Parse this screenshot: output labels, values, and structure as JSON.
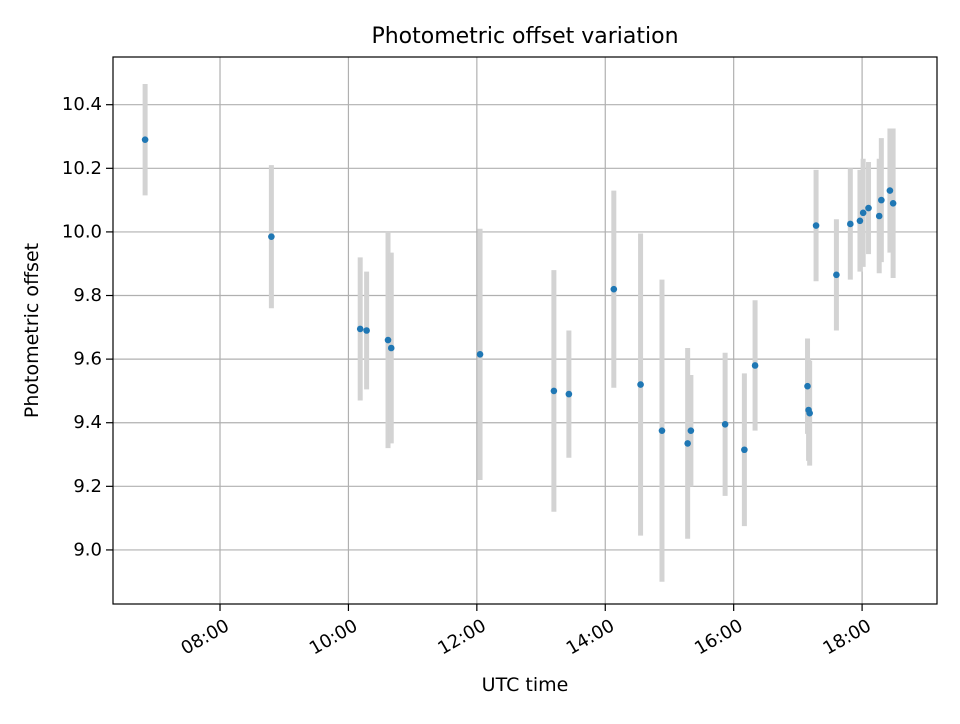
{
  "chart_data": {
    "type": "scatter",
    "title": "Photometric offset variation",
    "xlabel": "UTC time",
    "ylabel": "Photometric offset",
    "x_axis": "time",
    "x_ticks": [
      "08:00",
      "10:00",
      "12:00",
      "14:00",
      "16:00",
      "18:00"
    ],
    "xlim": [
      "06:20",
      "19:10"
    ],
    "y_ticks": [
      "9.0",
      "9.2",
      "9.4",
      "9.6",
      "9.8",
      "10.0",
      "10.2",
      "10.4"
    ],
    "ylim": [
      8.83,
      10.55
    ],
    "grid": true,
    "colors": {
      "marker": "#1f77b4",
      "errorbar": "#d3d3d3",
      "grid": "#b0b0b0"
    },
    "series": [
      {
        "points": [
          {
            "x": "06:50",
            "y": 10.29,
            "err": 0.175
          },
          {
            "x": "08:48",
            "y": 9.985,
            "err": 0.225
          },
          {
            "x": "10:11",
            "y": 9.695,
            "err": 0.225
          },
          {
            "x": "10:17",
            "y": 9.69,
            "err": 0.185
          },
          {
            "x": "10:37",
            "y": 9.66,
            "err": 0.34
          },
          {
            "x": "10:40",
            "y": 9.635,
            "err": 0.3
          },
          {
            "x": "12:03",
            "y": 9.615,
            "err": 0.395
          },
          {
            "x": "13:12",
            "y": 9.5,
            "err": 0.38
          },
          {
            "x": "13:26",
            "y": 9.49,
            "err": 0.2
          },
          {
            "x": "14:08",
            "y": 9.82,
            "err": 0.31
          },
          {
            "x": "14:33",
            "y": 9.52,
            "err": 0.475
          },
          {
            "x": "14:53",
            "y": 9.375,
            "err": 0.475
          },
          {
            "x": "15:17",
            "y": 9.335,
            "err": 0.3
          },
          {
            "x": "15:20",
            "y": 9.375,
            "err": 0.175
          },
          {
            "x": "15:52",
            "y": 9.395,
            "err": 0.225
          },
          {
            "x": "16:10",
            "y": 9.315,
            "err": 0.24
          },
          {
            "x": "16:20",
            "y": 9.58,
            "err": 0.205
          },
          {
            "x": "17:09",
            "y": 9.515,
            "err": 0.15
          },
          {
            "x": "17:10",
            "y": 9.44,
            "err": 0.16
          },
          {
            "x": "17:11",
            "y": 9.43,
            "err": 0.165
          },
          {
            "x": "17:17",
            "y": 10.02,
            "err": 0.175
          },
          {
            "x": "17:36",
            "y": 9.865,
            "err": 0.175
          },
          {
            "x": "17:49",
            "y": 10.025,
            "err": 0.175
          },
          {
            "x": "17:58",
            "y": 10.035,
            "err": 0.16
          },
          {
            "x": "18:01",
            "y": 10.06,
            "err": 0.17
          },
          {
            "x": "18:06",
            "y": 10.075,
            "err": 0.145
          },
          {
            "x": "18:16",
            "y": 10.05,
            "err": 0.18
          },
          {
            "x": "18:18",
            "y": 10.1,
            "err": 0.195
          },
          {
            "x": "18:26",
            "y": 10.13,
            "err": 0.195
          },
          {
            "x": "18:29",
            "y": 10.09,
            "err": 0.235
          }
        ]
      }
    ]
  }
}
